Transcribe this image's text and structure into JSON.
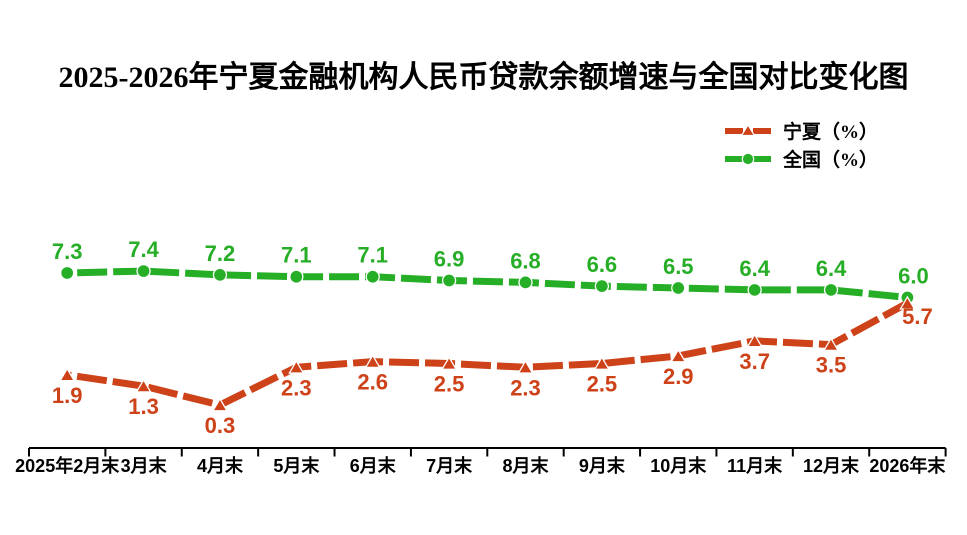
{
  "chart_data": {
    "type": "line",
    "title": "2025-2026年宁夏金融机构人民币贷款余额增速与全国对比变化图",
    "categories": [
      "2025年2月末",
      "3月末",
      "4月末",
      "5月末",
      "6月末",
      "7月末",
      "8月末",
      "9月末",
      "10月末",
      "11月末",
      "12月末",
      "2026年末"
    ],
    "series": [
      {
        "id": "ningxia",
        "name": "宁夏（%）",
        "color": "#CE4219",
        "marker": "triangle",
        "values": [
          1.9,
          1.3,
          0.3,
          2.3,
          2.6,
          2.5,
          2.3,
          2.5,
          2.9,
          3.7,
          3.5,
          5.7
        ],
        "label_side": "below",
        "label_offset_overrides": {
          "11": {
            "dx": 10,
            "dy": -7
          }
        }
      },
      {
        "id": "national",
        "name": "全国（%）",
        "color": "#26AE26",
        "marker": "circle",
        "values": [
          7.3,
          7.4,
          7.2,
          7.1,
          7.1,
          6.9,
          6.8,
          6.6,
          6.5,
          6.4,
          6.4,
          6.0
        ],
        "label_side": "above",
        "label_offset_overrides": {
          "11": {
            "dx": 6
          }
        }
      }
    ],
    "draw_order": [
      1,
      0
    ],
    "ylim": [
      -2,
      10
    ],
    "grid": false,
    "legend_position": "top-right",
    "axis_color": "#000000",
    "label_decimals": 1
  }
}
